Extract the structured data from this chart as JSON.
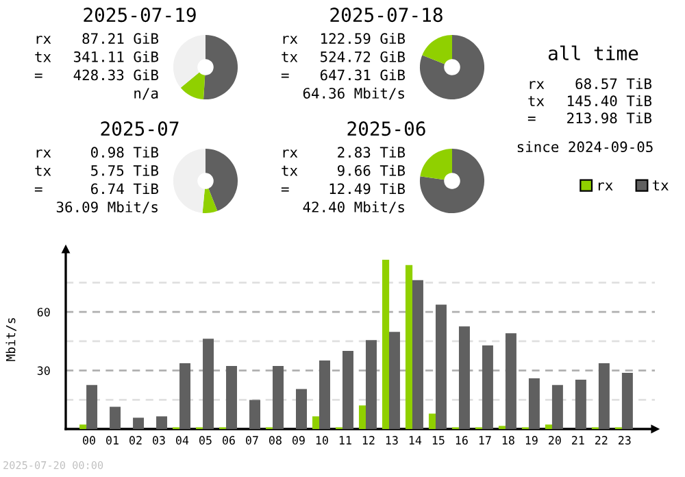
{
  "chart_data": [
    {
      "type": "donut",
      "title": "2025-07-19",
      "categories": [
        null,
        null,
        null
      ],
      "values": [
        51,
        13,
        36
      ],
      "colors": [
        "#606060",
        "#90d000",
        "#f0f0f0"
      ],
      "annotations": [
        "rx",
        "87.21 GiB",
        "tx",
        "341.11 GiB",
        "=",
        "428.33 GiB",
        "n/a"
      ]
    },
    {
      "type": "donut",
      "title": "2025-07-18",
      "categories": [
        null,
        null
      ],
      "values": [
        81.1,
        18.9
      ],
      "colors": [
        "#606060",
        "#90d000"
      ],
      "annotations": [
        "rx",
        "122.59 GiB",
        "tx",
        "524.72 GiB",
        "=",
        "647.31 GiB",
        "64.36 Mbit/s"
      ]
    },
    {
      "type": "donut",
      "title": "2025-07",
      "categories": [
        null,
        null,
        null
      ],
      "values": [
        44,
        7.5,
        48.5
      ],
      "colors": [
        "#606060",
        "#90d000",
        "#f0f0f0"
      ],
      "annotations": [
        "rx",
        "0.98 TiB",
        "tx",
        "5.75 TiB",
        "=",
        "6.74 TiB",
        "36.09 Mbit/s"
      ]
    },
    {
      "type": "donut",
      "title": "2025-06",
      "categories": [
        null,
        null
      ],
      "values": [
        77.3,
        22.7
      ],
      "colors": [
        "#606060",
        "#90d000"
      ],
      "annotations": [
        "rx",
        "2.83 TiB",
        "tx",
        "9.66 TiB",
        "=",
        "12.49 TiB",
        "42.40 Mbit/s"
      ]
    },
    {
      "type": "other",
      "title": "all time",
      "annotations": [
        "rx",
        "68.57 TiB",
        "tx",
        "145.40 TiB",
        "=",
        "213.98 TiB",
        "since 2024-09-05"
      ]
    },
    {
      "type": "bar",
      "ylabel": "Mbit/s",
      "categories": [
        "00",
        "01",
        "02",
        "03",
        "04",
        "05",
        "06",
        "07",
        "08",
        "09",
        "10",
        "11",
        "12",
        "13",
        "14",
        "15",
        "16",
        "17",
        "18",
        "19",
        "20",
        "21",
        "22",
        "23"
      ],
      "series": [
        {
          "name": "rx",
          "color": "#90d000",
          "values": [
            2.3,
            0,
            0,
            0,
            0.9,
            0.9,
            0.9,
            0,
            0.9,
            0,
            6.5,
            0.9,
            12.1,
            86.7,
            84,
            7.9,
            0.9,
            0.9,
            1.6,
            0.9,
            2.3,
            0,
            0.9,
            0.9
          ]
        },
        {
          "name": "tx",
          "color": "#606060",
          "values": [
            22.6,
            11.4,
            5.8,
            6.5,
            33.7,
            46.3,
            32.3,
            14.9,
            32.3,
            20.5,
            35.1,
            40,
            45.6,
            49.8,
            76.3,
            63.7,
            52.6,
            42.8,
            49.1,
            26,
            22.6,
            25.3,
            33.7,
            28.8
          ]
        }
      ],
      "ylim": [
        0,
        92
      ],
      "yticks": [
        {
          "value": 15,
          "label": null
        },
        30,
        {
          "value": 45,
          "label": null
        },
        60,
        {
          "value": 75,
          "label": null
        }
      ],
      "grid": "y",
      "legend": "top right",
      "annotations": [
        "2025-07-20 00:00"
      ]
    }
  ]
}
